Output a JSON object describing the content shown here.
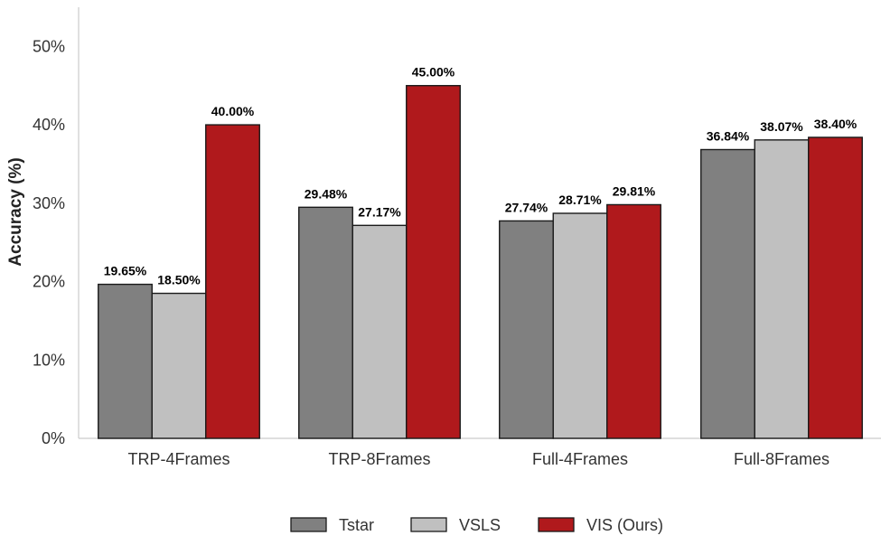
{
  "chart_data": {
    "type": "bar",
    "categories": [
      "TRP-4Frames",
      "TRP-8Frames",
      "Full-4Frames",
      "Full-8Frames"
    ],
    "series": [
      {
        "name": "Tstar",
        "color": "#808080",
        "values": [
          19.65,
          29.48,
          27.74,
          36.84
        ],
        "labels": [
          "19.65%",
          "29.48%",
          "27.74%",
          "36.84%"
        ]
      },
      {
        "name": "VSLS",
        "color": "#c0c0c0",
        "values": [
          18.5,
          27.17,
          28.71,
          38.07
        ],
        "labels": [
          "18.50%",
          "27.17%",
          "28.71%",
          "38.07%"
        ]
      },
      {
        "name": "VIS (Ours)",
        "color": "#b0191c",
        "values": [
          40.0,
          45.0,
          29.81,
          38.4
        ],
        "labels": [
          "40.00%",
          "45.00%",
          "29.81%",
          "38.40%"
        ]
      }
    ],
    "ylabel": "Accuracy (%)",
    "xlabel": "",
    "ylim": [
      0,
      55
    ],
    "yticks": [
      0,
      10,
      20,
      30,
      40,
      50
    ],
    "ytick_labels": [
      "0%",
      "10%",
      "20%",
      "30%",
      "40%",
      "50%"
    ],
    "grid": false,
    "legend_position": "bottom-center"
  }
}
